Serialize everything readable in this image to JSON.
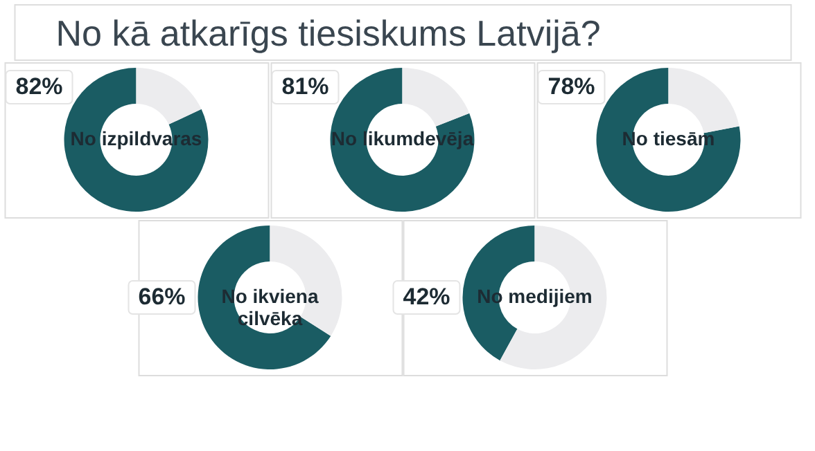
{
  "chart_data": [
    {
      "type": "other",
      "title": "No kā atkarīgs tiesiskums Latvijā?"
    },
    {
      "type": "donut",
      "title": "No izpildvaras",
      "categories": [
        null,
        null
      ],
      "values": [
        82,
        18
      ],
      "colors": [
        "#1a5c63",
        "#ececee"
      ],
      "value_labels": [
        "82%",
        null
      ]
    },
    {
      "type": "donut",
      "title": "No likumdevēja",
      "categories": [
        null,
        null
      ],
      "values": [
        81,
        19
      ],
      "colors": [
        "#1a5c63",
        "#ececee"
      ],
      "value_labels": [
        "81%",
        null
      ]
    },
    {
      "type": "donut",
      "title": "No tiesām",
      "categories": [
        null,
        null
      ],
      "values": [
        78,
        22
      ],
      "colors": [
        "#1a5c63",
        "#ececee"
      ],
      "value_labels": [
        "78%",
        null
      ]
    },
    {
      "type": "donut",
      "title": "No ikviena\ncilvēka",
      "categories": [
        null,
        null
      ],
      "values": [
        66,
        34
      ],
      "colors": [
        "#1a5c63",
        "#ececee"
      ],
      "value_labels": [
        "66%",
        null
      ]
    },
    {
      "type": "donut",
      "title": "No medijiem",
      "categories": [
        null,
        null
      ],
      "values": [
        42,
        58
      ],
      "colors": [
        "#1a5c63",
        "#ececee"
      ],
      "value_labels": [
        "42%",
        null
      ]
    }
  ]
}
